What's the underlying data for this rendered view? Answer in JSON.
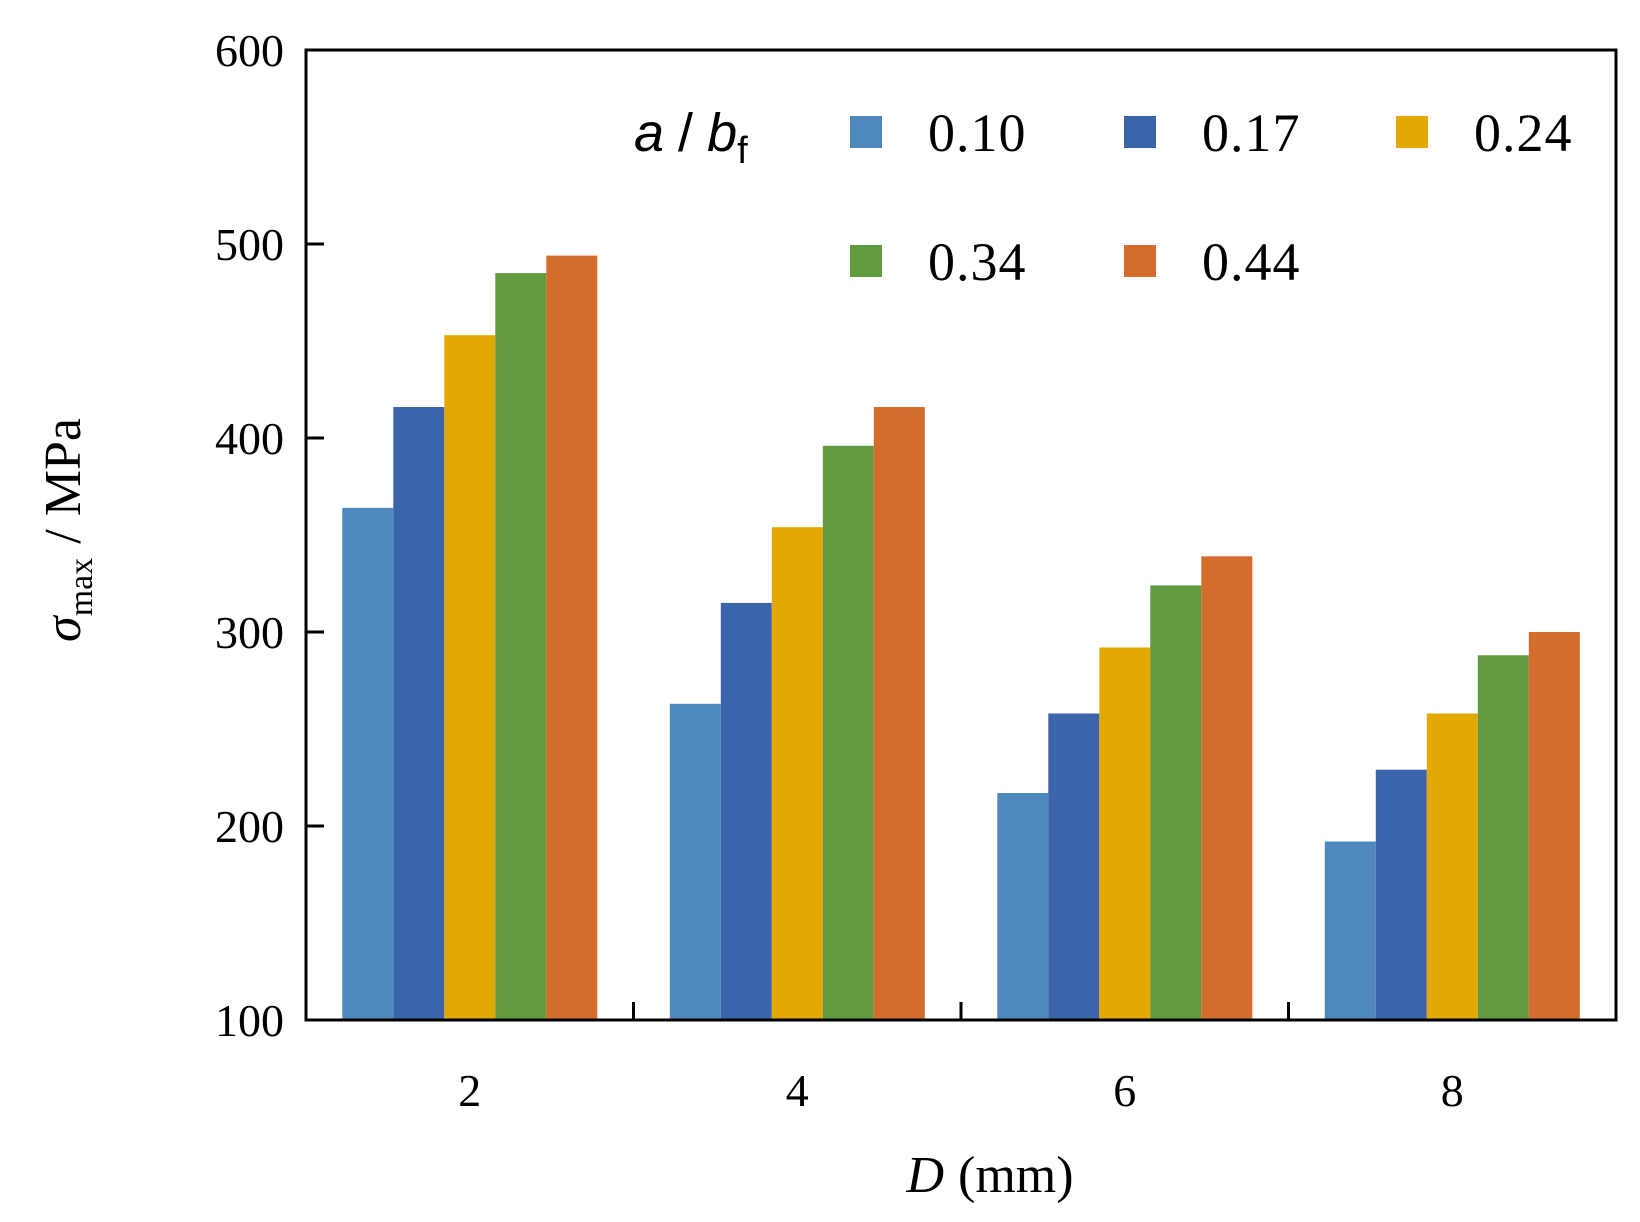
{
  "chart_data": {
    "type": "bar",
    "categories": [
      "2",
      "4",
      "6",
      "8"
    ],
    "xlabel": {
      "var": "D",
      "unit": "(mm)"
    },
    "ylabel": {
      "var": "σ",
      "sub": "max",
      "unit": "/ MPa"
    },
    "ylim": [
      100,
      600
    ],
    "yticks": [
      "100",
      "200",
      "300",
      "400",
      "500",
      "600"
    ],
    "legend": {
      "title": {
        "a": "a",
        "sep": "/",
        "b": "b",
        "sub": "f"
      },
      "placement": "top-right"
    },
    "series": [
      {
        "name": "0.10",
        "color": "#4f88bb",
        "values": [
          364,
          263,
          217,
          192
        ]
      },
      {
        "name": "0.17",
        "color": "#3c64ab",
        "values": [
          416,
          315,
          258,
          229
        ]
      },
      {
        "name": "0.24",
        "color": "#e3a802",
        "values": [
          453,
          354,
          292,
          258
        ]
      },
      {
        "name": "0.34",
        "color": "#629a40",
        "values": [
          485,
          396,
          324,
          288
        ]
      },
      {
        "name": "0.44",
        "color": "#d46c2c",
        "values": [
          494,
          416,
          339,
          300
        ]
      }
    ]
  }
}
